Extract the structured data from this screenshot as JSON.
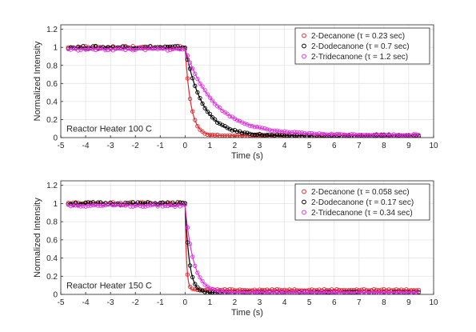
{
  "chart_data": [
    {
      "type": "scatter",
      "xlabel": "Time (s)",
      "ylabel": "Normalized Intensity",
      "xlim": [
        -5,
        10
      ],
      "ylim": [
        0,
        1.25
      ],
      "xticks": [
        "-5",
        "-4",
        "-3",
        "-2",
        "-1",
        "0",
        "1",
        "2",
        "3",
        "4",
        "5",
        "6",
        "7",
        "8",
        "9",
        "10"
      ],
      "yticks": [
        "0",
        "0.2",
        "0.4",
        "0.6",
        "0.8",
        "1",
        "1.2"
      ],
      "grid": true,
      "legend_position": "top-right",
      "annotation": "Reactor Heater 100 C",
      "series": [
        {
          "name": "2-Decanone (τ = 0.23 sec)",
          "color": "#e8262a",
          "tau": 0.23,
          "baseline": 1.0,
          "plateau": 0.02
        },
        {
          "name": "2-Dodecanone (τ = 0.7 sec)",
          "color": "#000000",
          "tau": 0.7,
          "baseline": 1.0,
          "plateau": 0.02
        },
        {
          "name": "2-Tridecanone (τ = 1.2 sec)",
          "color": "#e030e0",
          "tau": 1.2,
          "baseline": 0.98,
          "plateau": 0.03
        }
      ]
    },
    {
      "type": "scatter",
      "xlabel": "Time (s)",
      "ylabel": "Normalized Intensity",
      "xlim": [
        -5,
        10
      ],
      "ylim": [
        0,
        1.25
      ],
      "xticks": [
        "-5",
        "-4",
        "-3",
        "-2",
        "-1",
        "0",
        "1",
        "2",
        "3",
        "4",
        "5",
        "6",
        "7",
        "8",
        "9",
        "10"
      ],
      "yticks": [
        "0",
        "0.2",
        "0.4",
        "0.6",
        "0.8",
        "1",
        "1.2"
      ],
      "grid": true,
      "legend_position": "top-right",
      "annotation": "Reactor Heater 150 C",
      "series": [
        {
          "name": "2-Decanone (τ = 0.058 sec)",
          "color": "#e8262a",
          "tau": 0.058,
          "baseline": 1.0,
          "plateau": 0.05
        },
        {
          "name": "2-Dodecanone (τ = 0.17 sec)",
          "color": "#000000",
          "tau": 0.17,
          "baseline": 1.0,
          "plateau": 0.02
        },
        {
          "name": "2-Tridecanone (τ = 0.34 sec)",
          "color": "#e030e0",
          "tau": 0.34,
          "baseline": 0.98,
          "plateau": 0.02
        }
      ]
    }
  ]
}
